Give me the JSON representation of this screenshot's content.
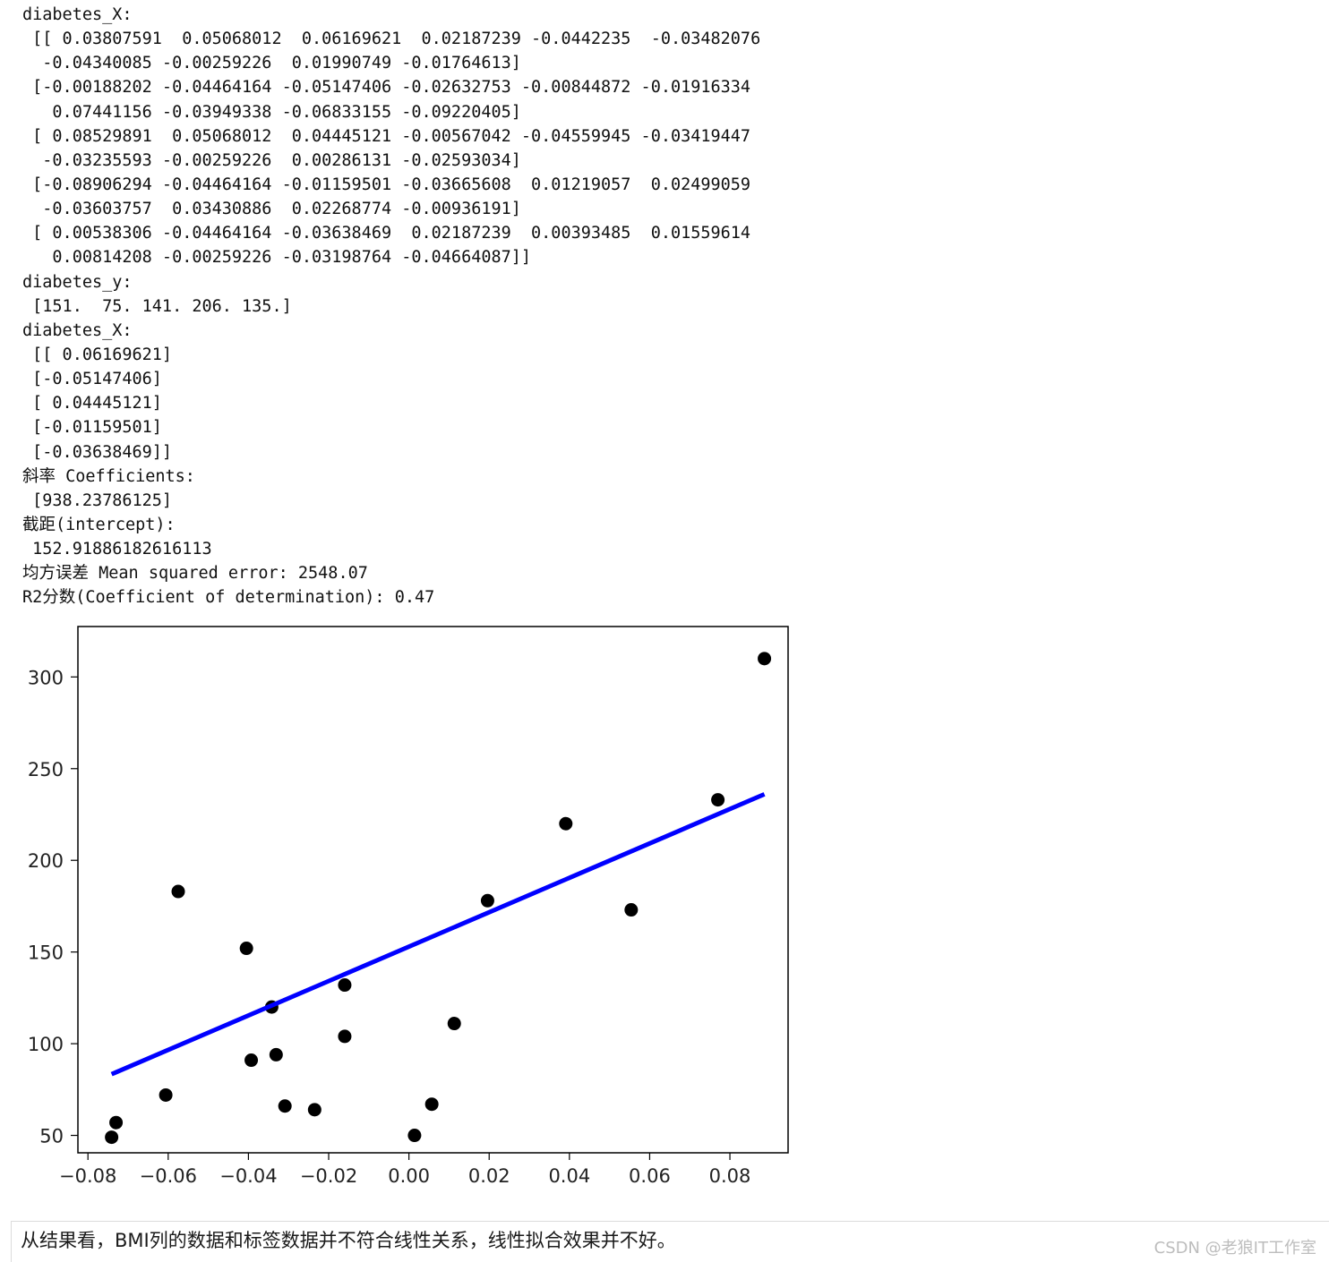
{
  "console": {
    "lines": [
      "diabetes_X:",
      " [[ 0.03807591  0.05068012  0.06169621  0.02187239 -0.0442235  -0.03482076",
      "  -0.04340085 -0.00259226  0.01990749 -0.01764613]",
      " [-0.00188202 -0.04464164 -0.05147406 -0.02632753 -0.00844872 -0.01916334",
      "   0.07441156 -0.03949338 -0.06833155 -0.09220405]",
      " [ 0.08529891  0.05068012  0.04445121 -0.00567042 -0.04559945 -0.03419447",
      "  -0.03235593 -0.00259226  0.00286131 -0.02593034]",
      " [-0.08906294 -0.04464164 -0.01159501 -0.03665608  0.01219057  0.02499059",
      "  -0.03603757  0.03430886  0.02268774 -0.00936191]",
      " [ 0.00538306 -0.04464164 -0.03638469  0.02187239  0.00393485  0.01559614",
      "   0.00814208 -0.00259226 -0.03198764 -0.04664087]]",
      "diabetes_y:",
      " [151.  75. 141. 206. 135.]",
      "diabetes_X:",
      " [[ 0.06169621]",
      " [-0.05147406]",
      " [ 0.04445121]",
      " [-0.01159501]",
      " [-0.03638469]]",
      "斜率 Coefficients:",
      " [938.23786125]",
      "截距(intercept):",
      " 152.91886182616113",
      "均方误差 Mean squared error: 2548.07",
      "R2分数(Coefficient of determination): 0.47"
    ]
  },
  "chart_data": {
    "type": "scatter",
    "title": "",
    "xlabel": "",
    "ylabel": "",
    "xlim": [
      -0.0825,
      0.0945
    ],
    "ylim": [
      40.5,
      327.5
    ],
    "xticks": [
      -0.08,
      -0.06,
      -0.04,
      -0.02,
      0.0,
      0.02,
      0.04,
      0.06,
      0.08
    ],
    "xtick_labels": [
      "−0.08",
      "−0.06",
      "−0.04",
      "−0.02",
      "0.00",
      "0.02",
      "0.04",
      "0.06",
      "0.08"
    ],
    "yticks": [
      50,
      100,
      150,
      200,
      250,
      300
    ],
    "ytick_labels": [
      "50",
      "100",
      "150",
      "200",
      "250",
      "300"
    ],
    "grid": false,
    "legend": false,
    "series": [
      {
        "kind": "scatter",
        "color": "#000000",
        "points": [
          [
            -0.0741,
            49
          ],
          [
            -0.073,
            57
          ],
          [
            -0.0606,
            72
          ],
          [
            -0.0575,
            183
          ],
          [
            -0.0405,
            152
          ],
          [
            -0.0393,
            91
          ],
          [
            -0.0342,
            120
          ],
          [
            -0.0331,
            94
          ],
          [
            -0.0309,
            66
          ],
          [
            -0.0235,
            64
          ],
          [
            -0.016,
            132
          ],
          [
            -0.016,
            104
          ],
          [
            0.0014,
            50
          ],
          [
            0.0057,
            67
          ],
          [
            0.0113,
            111
          ],
          [
            0.0196,
            178
          ],
          [
            0.0391,
            220
          ],
          [
            0.0554,
            173
          ],
          [
            0.077,
            233
          ],
          [
            0.0886,
            310
          ]
        ]
      },
      {
        "kind": "line",
        "color": "#0000ff",
        "slope": 938.23786125,
        "intercept": 152.91886182616113,
        "x_range": [
          -0.0741,
          0.0886
        ]
      }
    ]
  },
  "conclusion": "从结果看，BMI列的数据和标签数据并不符合线性关系，线性拟合效果并不好。",
  "watermark": "CSDN @老狼IT工作室"
}
